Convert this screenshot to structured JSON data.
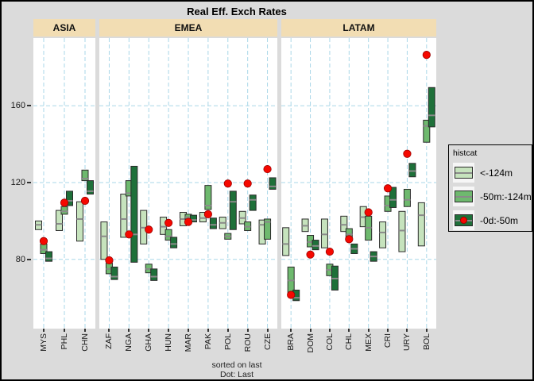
{
  "title": "Real Eff. Exch Rates",
  "footer": {
    "line1": "sorted on last",
    "line2": "Dot: Last"
  },
  "legend": {
    "title": "histcat",
    "items": [
      {
        "key": "lt",
        "label": "<-124m"
      },
      {
        "key": "md",
        "label": "-50m:-124m"
      },
      {
        "key": "dk",
        "label": "-0d:-50m",
        "dot": true
      }
    ]
  },
  "colors": {
    "background": "#DBDBDB",
    "panel": "#FFFFFF",
    "strip": "#F2DDB3",
    "grid": "#A9D7E8",
    "light_green": "#C6E3BD",
    "medium_green": "#6EB96E",
    "dark_green": "#1E7039",
    "box_border": "#2B2B2B",
    "median_gray": "#8A8A8A",
    "dot_red": "#F50800",
    "axis_text": "#1A1A1A"
  },
  "chart_data": {
    "type": "range-bar",
    "title": "Real Eff. Exch Rates",
    "ylabel": "",
    "xlabel": "",
    "y_ticks": [
      80,
      120,
      160
    ],
    "ylim": [
      44,
      195
    ],
    "grid": "dashed-lightblue-both-axes",
    "legend_position": "right",
    "note": "Each country shows three dodged range boxes (light: older than 124 months, medium: -50m to -124m, dark: last 50 months) as [low, high, midline]; red dot = last value.",
    "panels": [
      {
        "name": "ASIA",
        "countries": [
          {
            "code": "MYS",
            "lt": [
              95.5,
              100,
              98
            ],
            "md": [
              83,
              88,
              85
            ],
            "dk": [
              79,
              84,
              80.5
            ],
            "dot": 89.5
          },
          {
            "code": "PHL",
            "lt": [
              95,
              105.5,
              98.5
            ],
            "md": [
              103.5,
              107.5,
              105
            ],
            "dk": [
              108,
              115.5,
              110.5
            ],
            "dot": 109.5
          },
          {
            "code": "CHN",
            "lt": [
              89.5,
              110,
              101
            ],
            "md": [
              121,
              126.5,
              122
            ],
            "dk": [
              114,
              121,
              115.5
            ],
            "dot": 110.5
          }
        ]
      },
      {
        "name": "EMEA",
        "countries": [
          {
            "code": "ZAF",
            "lt": [
              80,
              99.5,
              92
            ],
            "md": [
              72.5,
              78,
              75
            ],
            "dk": [
              69.5,
              76,
              71
            ],
            "dot": 79.5
          },
          {
            "code": "NGA",
            "lt": [
              91.5,
              114,
              101
            ],
            "md": [
              113,
              121,
              114.5
            ],
            "dk": [
              78.5,
              128.5,
              93
            ],
            "dot": 93
          },
          {
            "code": "GHA",
            "lt": [
              88,
              105.5,
              96.5
            ],
            "md": [
              73,
              77.5,
              75
            ],
            "dk": [
              69,
              75,
              71
            ],
            "dot": 95.5
          },
          {
            "code": "HUN",
            "lt": [
              93,
              102,
              97
            ],
            "md": [
              90,
              95.5,
              92
            ],
            "dk": [
              86,
              91.5,
              88
            ],
            "dot": 99
          },
          {
            "code": "MAR",
            "lt": [
              97.5,
              104.5,
              101
            ],
            "md": [
              100.5,
              103.5,
              102
            ],
            "dk": [
              99.5,
              103,
              100.5
            ],
            "dot": 99.5
          },
          {
            "code": "PAK",
            "lt": [
              99.5,
              104.5,
              101.5
            ],
            "md": [
              106,
              118.5,
              108
            ],
            "dk": [
              96,
              101.5,
              98
            ],
            "dot": 103.5
          },
          {
            "code": "POL",
            "lt": [
              96,
              102,
              99
            ],
            "md": [
              90.5,
              93.5,
              92
            ],
            "dk": [
              95.5,
              115.5,
              110
            ],
            "dot": 119.5
          },
          {
            "code": "ROU",
            "lt": [
              98.5,
              105,
              101.5
            ],
            "md": [
              95,
              99.5,
              97
            ],
            "dk": [
              105.5,
              113.5,
              111
            ],
            "dot": 119.5
          },
          {
            "code": "CZE",
            "lt": [
              88,
              100.5,
              98
            ],
            "md": [
              90.5,
              101,
              99.5
            ],
            "dk": [
              116.5,
              122.5,
              118
            ],
            "dot": 127
          }
        ]
      },
      {
        "name": "LATAM",
        "countries": [
          {
            "code": "BRA",
            "lt": [
              82,
              96.5,
              88
            ],
            "md": [
              62,
              76,
              69
            ],
            "dk": [
              58.5,
              64,
              60
            ],
            "dot": 61.5
          },
          {
            "code": "DOM",
            "lt": [
              94.5,
              101,
              97.5
            ],
            "md": [
              86.5,
              92.5,
              89
            ],
            "dk": [
              85,
              90,
              87
            ],
            "dot": 82.5
          },
          {
            "code": "COL",
            "lt": [
              86,
              101,
              93
            ],
            "md": [
              71.5,
              77.5,
              74.5
            ],
            "dk": [
              64,
              76.5,
              70
            ],
            "dot": 84
          },
          {
            "code": "CHL",
            "lt": [
              94.5,
              102.5,
              98
            ],
            "md": [
              90.5,
              96,
              93
            ],
            "dk": [
              83,
              88,
              85.5
            ],
            "dot": 90.5
          },
          {
            "code": "MEX",
            "lt": [
              97,
              107.5,
              102
            ],
            "md": [
              90,
              102.5,
              96.5
            ],
            "dk": [
              79,
              84,
              81.5
            ],
            "dot": 104.5
          },
          {
            "code": "CRI",
            "lt": [
              86,
              99.5,
              94
            ],
            "md": [
              105,
              113,
              108
            ],
            "dk": [
              107,
              117.5,
              111
            ],
            "dot": 117
          },
          {
            "code": "URY",
            "lt": [
              84,
              105,
              95
            ],
            "md": [
              107.5,
              116.5,
              111
            ],
            "dk": [
              123,
              130,
              126
            ],
            "dot": 135
          },
          {
            "code": "BOL",
            "lt": [
              87,
              109.5,
              103
            ],
            "md": [
              141,
              152.5,
              149.5
            ],
            "dk": [
              149,
              169.5,
              155
            ],
            "dot": 186.5
          }
        ]
      }
    ]
  }
}
